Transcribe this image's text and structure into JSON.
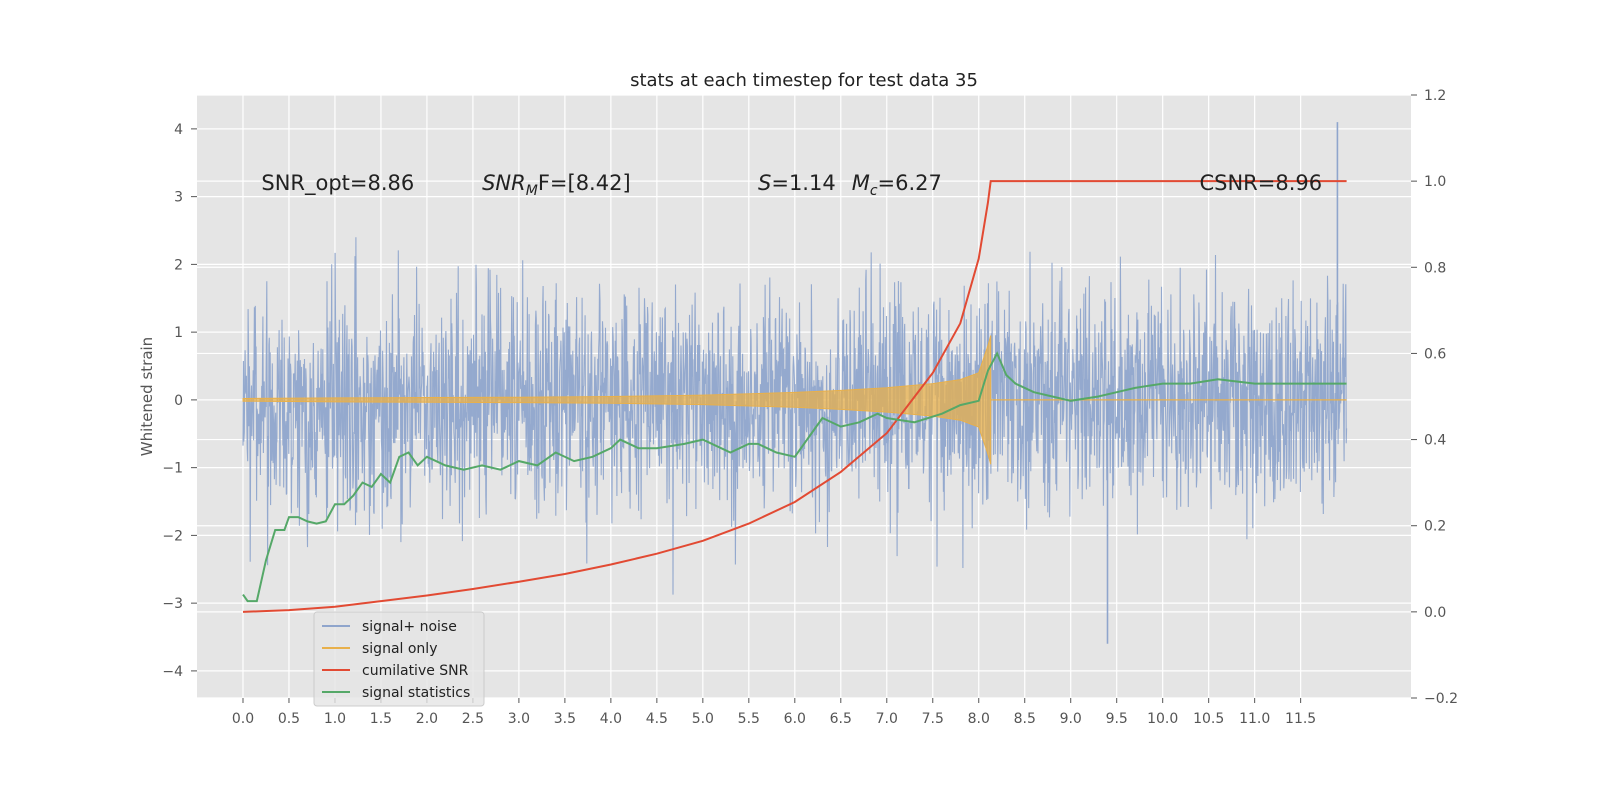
{
  "chart_data": {
    "type": "line",
    "title": "stats at each timestep for test data 35",
    "ylabel": "Whitened strain",
    "xlabel": "",
    "xlim": [
      -0.5,
      12.7
    ],
    "ylim": [
      -4.4,
      4.5
    ],
    "y2lim": [
      -0.2,
      1.2
    ],
    "x_ticks": [
      "0.0",
      "0.5",
      "1.0",
      "1.5",
      "2.0",
      "2.5",
      "3.0",
      "3.5",
      "4.0",
      "4.5",
      "5.0",
      "5.5",
      "6.0",
      "6.5",
      "7.0",
      "7.5",
      "8.0",
      "8.5",
      "9.0",
      "9.5",
      "10.0",
      "10.5",
      "11.0",
      "11.5"
    ],
    "y_ticks": [
      -4,
      -3,
      -2,
      -1,
      0,
      1,
      2,
      3,
      4
    ],
    "y2_ticks": [
      "−0.2",
      "0.0",
      "0.2",
      "0.4",
      "0.6",
      "0.8",
      "1.0",
      "1.2"
    ],
    "y_tick_labels": [
      "−4",
      "−3",
      "−2",
      "−1",
      "0",
      "1",
      "2",
      "3",
      "4"
    ],
    "grid": true,
    "legend_position": "lower-left",
    "annotations": [
      {
        "text": "SNR_opt=8.86",
        "x": 0.2,
        "y": 3.2
      },
      {
        "text": "SNRMF=[8.42]",
        "x": 2.6,
        "y": 3.2
      },
      {
        "text": "S=1.14   Mc=6.27",
        "x": 5.6,
        "y": 3.2
      },
      {
        "text": "CSNR=8.96",
        "x": 10.4,
        "y": 3.2
      }
    ],
    "annotation_parts": {
      "snr_mf_main": "SNR",
      "snr_mf_sub": "M",
      "snr_mf_rest": "F=[8.42]",
      "s_main": "S",
      "s_rest": "=1.14",
      "mc_main": "M",
      "mc_sub": "c",
      "mc_rest": "=6.27"
    },
    "series": [
      {
        "name": "signal+ noise",
        "axis": "left",
        "color": "#8fa5cc",
        "description_values": "noise approx uniform amplitude, peaks to ~4.1 at x=11.9, min ~-3.5 at x=9.4",
        "x_range": [
          0.0,
          12.0
        ],
        "envelope": {
          "typical": 2.2,
          "max": 4.1,
          "min": -3.6
        }
      },
      {
        "name": "signal only",
        "axis": "left",
        "color": "#e8b04b",
        "x": [
          0.0,
          1.0,
          2.0,
          3.0,
          4.0,
          5.0,
          6.0,
          6.5,
          7.0,
          7.5,
          7.8,
          8.0,
          8.1,
          8.13
        ],
        "amplitude": [
          0.02,
          0.03,
          0.035,
          0.04,
          0.05,
          0.07,
          0.11,
          0.14,
          0.18,
          0.24,
          0.3,
          0.4,
          0.8,
          0.95
        ],
        "after": {
          "x": [
            8.13,
            12.0
          ],
          "y": [
            0.0,
            0.0
          ]
        }
      },
      {
        "name": "cumilative SNR",
        "axis": "right",
        "color": "#e24a33",
        "x": [
          0.0,
          0.5,
          1.0,
          1.5,
          2.0,
          2.5,
          3.0,
          3.5,
          4.0,
          4.5,
          5.0,
          5.5,
          6.0,
          6.5,
          7.0,
          7.5,
          7.8,
          8.0,
          8.1,
          8.13,
          12.0
        ],
        "values": [
          0.0,
          0.004,
          0.012,
          0.025,
          0.038,
          0.053,
          0.07,
          0.088,
          0.11,
          0.135,
          0.165,
          0.205,
          0.255,
          0.325,
          0.415,
          0.555,
          0.67,
          0.82,
          0.95,
          1.0,
          1.0
        ]
      },
      {
        "name": "signal statistics",
        "axis": "right",
        "color": "#55a868",
        "x": [
          0.0,
          0.05,
          0.15,
          0.25,
          0.35,
          0.45,
          0.5,
          0.6,
          0.7,
          0.8,
          0.9,
          1.0,
          1.1,
          1.2,
          1.3,
          1.4,
          1.5,
          1.6,
          1.7,
          1.8,
          1.9,
          2.0,
          2.2,
          2.4,
          2.6,
          2.8,
          3.0,
          3.2,
          3.4,
          3.6,
          3.8,
          4.0,
          4.1,
          4.3,
          4.5,
          4.8,
          5.0,
          5.3,
          5.5,
          5.6,
          5.8,
          6.0,
          6.2,
          6.3,
          6.5,
          6.7,
          6.9,
          7.0,
          7.3,
          7.6,
          7.8,
          8.0,
          8.1,
          8.2,
          8.3,
          8.4,
          8.6,
          8.8,
          9.0,
          9.3,
          9.5,
          9.7,
          10.0,
          10.3,
          10.6,
          11.0,
          11.3,
          11.6,
          12.0
        ],
        "values": [
          0.04,
          0.025,
          0.025,
          0.12,
          0.19,
          0.19,
          0.22,
          0.22,
          0.21,
          0.205,
          0.21,
          0.25,
          0.25,
          0.27,
          0.3,
          0.29,
          0.32,
          0.3,
          0.36,
          0.37,
          0.34,
          0.36,
          0.34,
          0.33,
          0.34,
          0.33,
          0.35,
          0.34,
          0.37,
          0.35,
          0.36,
          0.38,
          0.4,
          0.38,
          0.38,
          0.39,
          0.4,
          0.37,
          0.39,
          0.39,
          0.37,
          0.36,
          0.42,
          0.45,
          0.43,
          0.44,
          0.46,
          0.45,
          0.44,
          0.46,
          0.48,
          0.49,
          0.56,
          0.6,
          0.55,
          0.53,
          0.51,
          0.5,
          0.49,
          0.5,
          0.51,
          0.52,
          0.53,
          0.53,
          0.54,
          0.53,
          0.53,
          0.53,
          0.53
        ]
      }
    ]
  }
}
